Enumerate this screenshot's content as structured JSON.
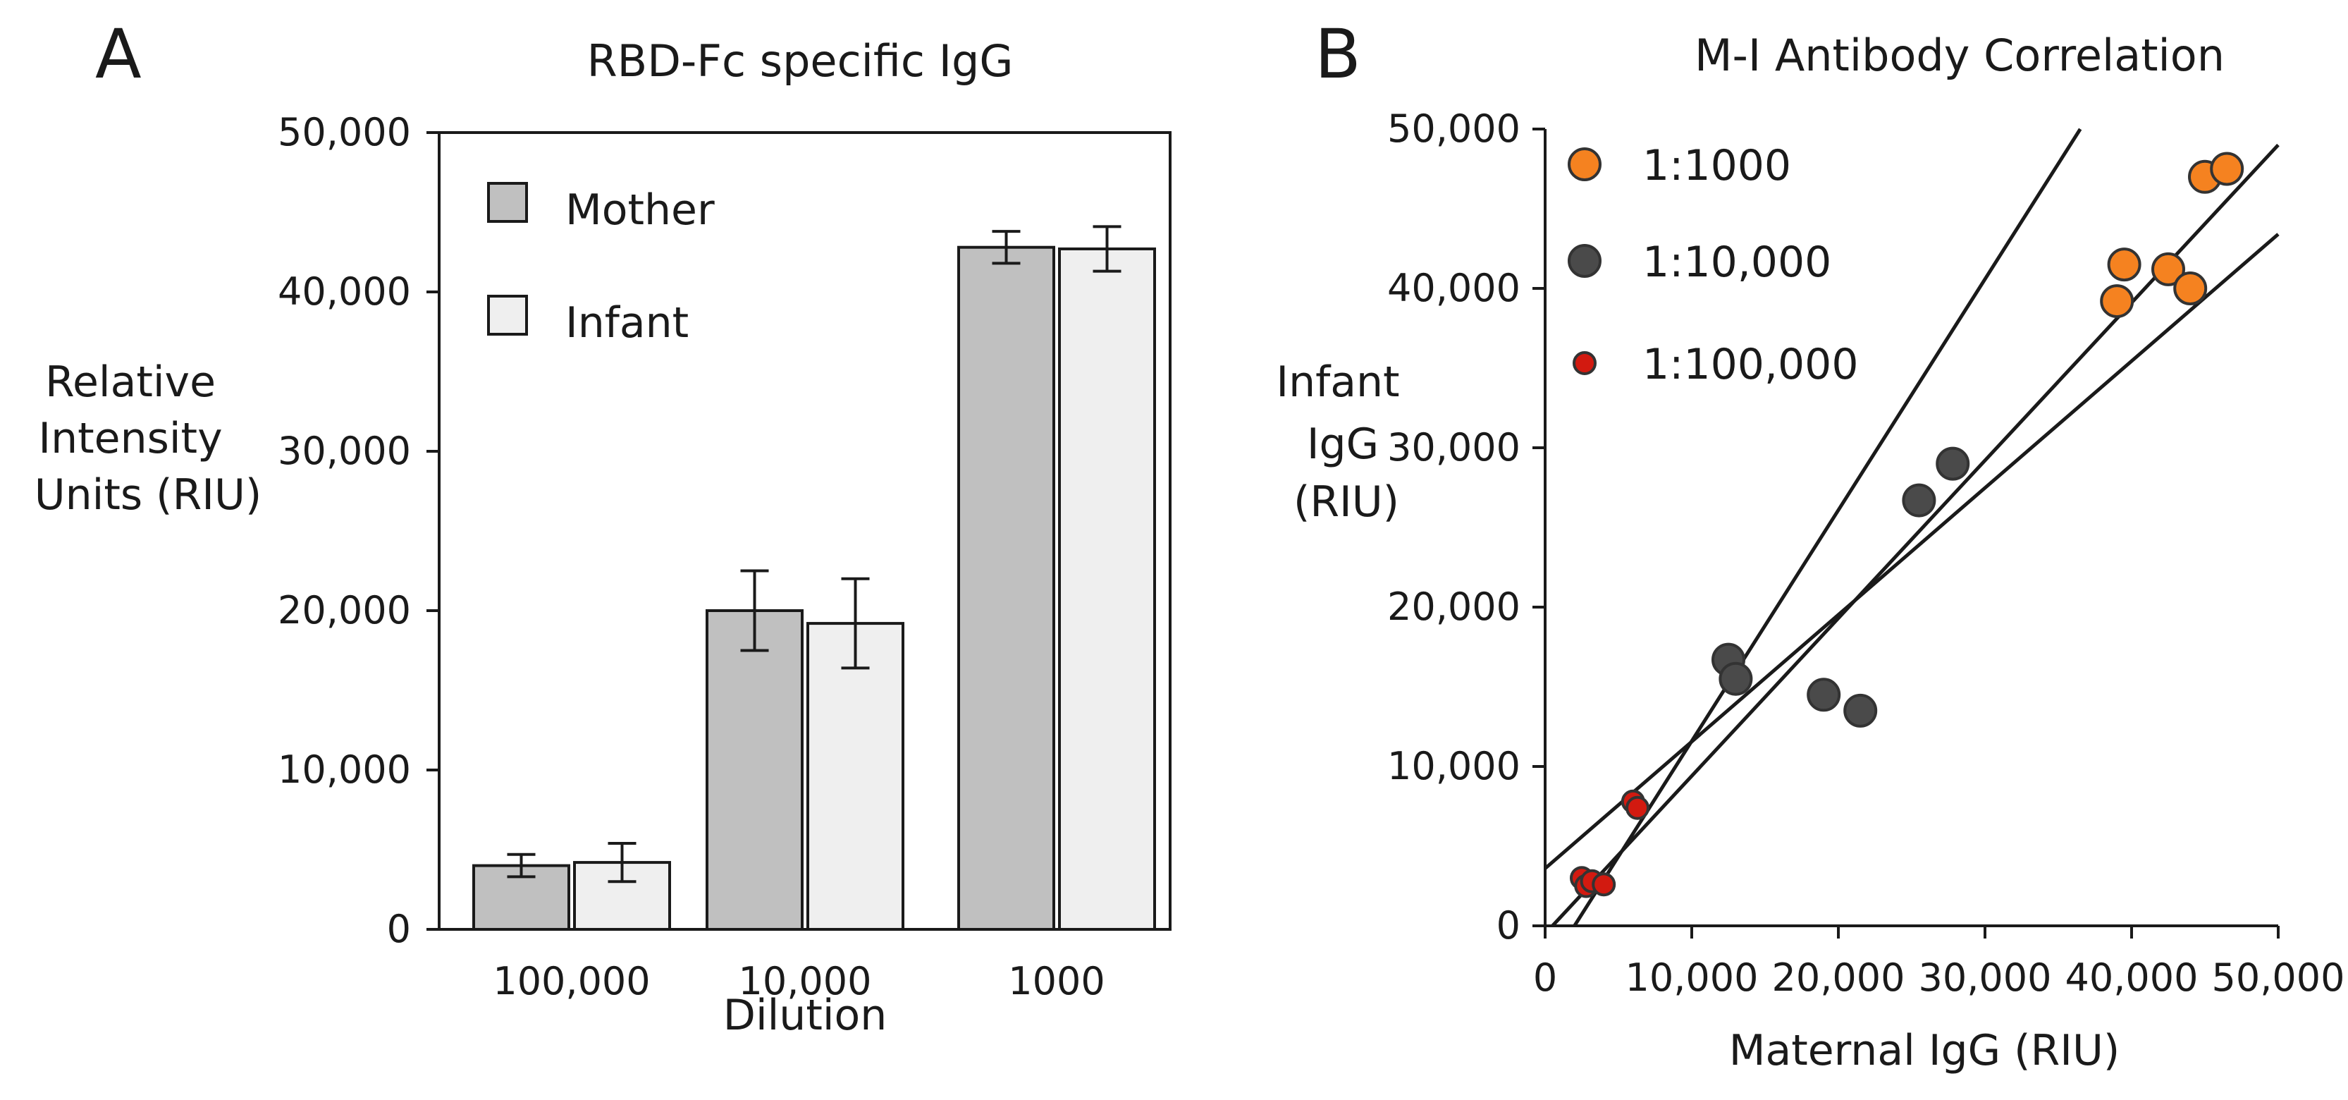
{
  "figure": {
    "panels": [
      {
        "letter": "A"
      },
      {
        "letter": "B"
      }
    ]
  },
  "chart_data": [
    {
      "type": "bar",
      "panel": "A",
      "title": "RBD-Fc specific IgG",
      "xlabel": "Dilution",
      "ylabel_lines": [
        "Relative",
        "Intensity",
        "Units (RIU)"
      ],
      "ylim": [
        0,
        50000
      ],
      "yticks": [
        0,
        10000,
        20000,
        30000,
        40000,
        50000
      ],
      "ytick_labels": [
        "0",
        "10,000",
        "20,000",
        "30,000",
        "40,000",
        "50,000"
      ],
      "categories": [
        "100,000",
        "10,000",
        "1000"
      ],
      "series": [
        {
          "name": "Mother",
          "color": "#c0c0c0",
          "values": [
            4000,
            20000,
            42800
          ],
          "errors": [
            700,
            2500,
            1000
          ]
        },
        {
          "name": "Infant",
          "color": "#efefef",
          "values": [
            4200,
            19200,
            42700
          ],
          "errors": [
            1200,
            2800,
            1400
          ]
        }
      ],
      "legend_position": "top-left",
      "grid": false
    },
    {
      "type": "scatter",
      "panel": "B",
      "title": "M-I Antibody Correlation",
      "xlabel": "Maternal IgG (RIU)",
      "ylabel_lines": [
        "Infant",
        "IgG",
        "(RIU)"
      ],
      "xlim": [
        0,
        50000
      ],
      "ylim": [
        0,
        50000
      ],
      "xticks": [
        0,
        10000,
        20000,
        30000,
        40000,
        50000
      ],
      "xtick_labels": [
        "0",
        "10,000",
        "20,000",
        "30,000",
        "40,000",
        "50,000"
      ],
      "yticks": [
        0,
        10000,
        20000,
        30000,
        40000,
        50000
      ],
      "ytick_labels": [
        "0",
        "10,000",
        "20,000",
        "30,000",
        "40,000",
        "50,000"
      ],
      "series": [
        {
          "name": "1:1000",
          "color": "#f58220",
          "marker_size": "large",
          "x": [
            39000,
            39500,
            42500,
            44000,
            45000,
            46500
          ],
          "y": [
            39200,
            41500,
            41200,
            40000,
            47000,
            47500
          ]
        },
        {
          "name": "1:10,000",
          "color": "#4a4a4a",
          "marker_size": "large",
          "x": [
            12500,
            13000,
            19000,
            21500,
            25500,
            27800
          ],
          "y": [
            16700,
            15500,
            14500,
            13500,
            26700,
            29000
          ]
        },
        {
          "name": "1:100,000",
          "color": "#d21a10",
          "marker_size": "small",
          "x": [
            2500,
            2800,
            3200,
            4000,
            6000,
            6300
          ],
          "y": [
            3000,
            2500,
            2800,
            2600,
            7800,
            7400
          ]
        }
      ],
      "regression_lines": [
        {
          "from": [
            2000,
            0
          ],
          "to": [
            36500,
            50000
          ]
        },
        {
          "from": [
            500,
            0
          ],
          "to": [
            50000,
            49000
          ]
        },
        {
          "from": [
            0,
            3600
          ],
          "to": [
            50000,
            43400
          ]
        }
      ],
      "legend_position": "top-left",
      "grid": false
    }
  ]
}
